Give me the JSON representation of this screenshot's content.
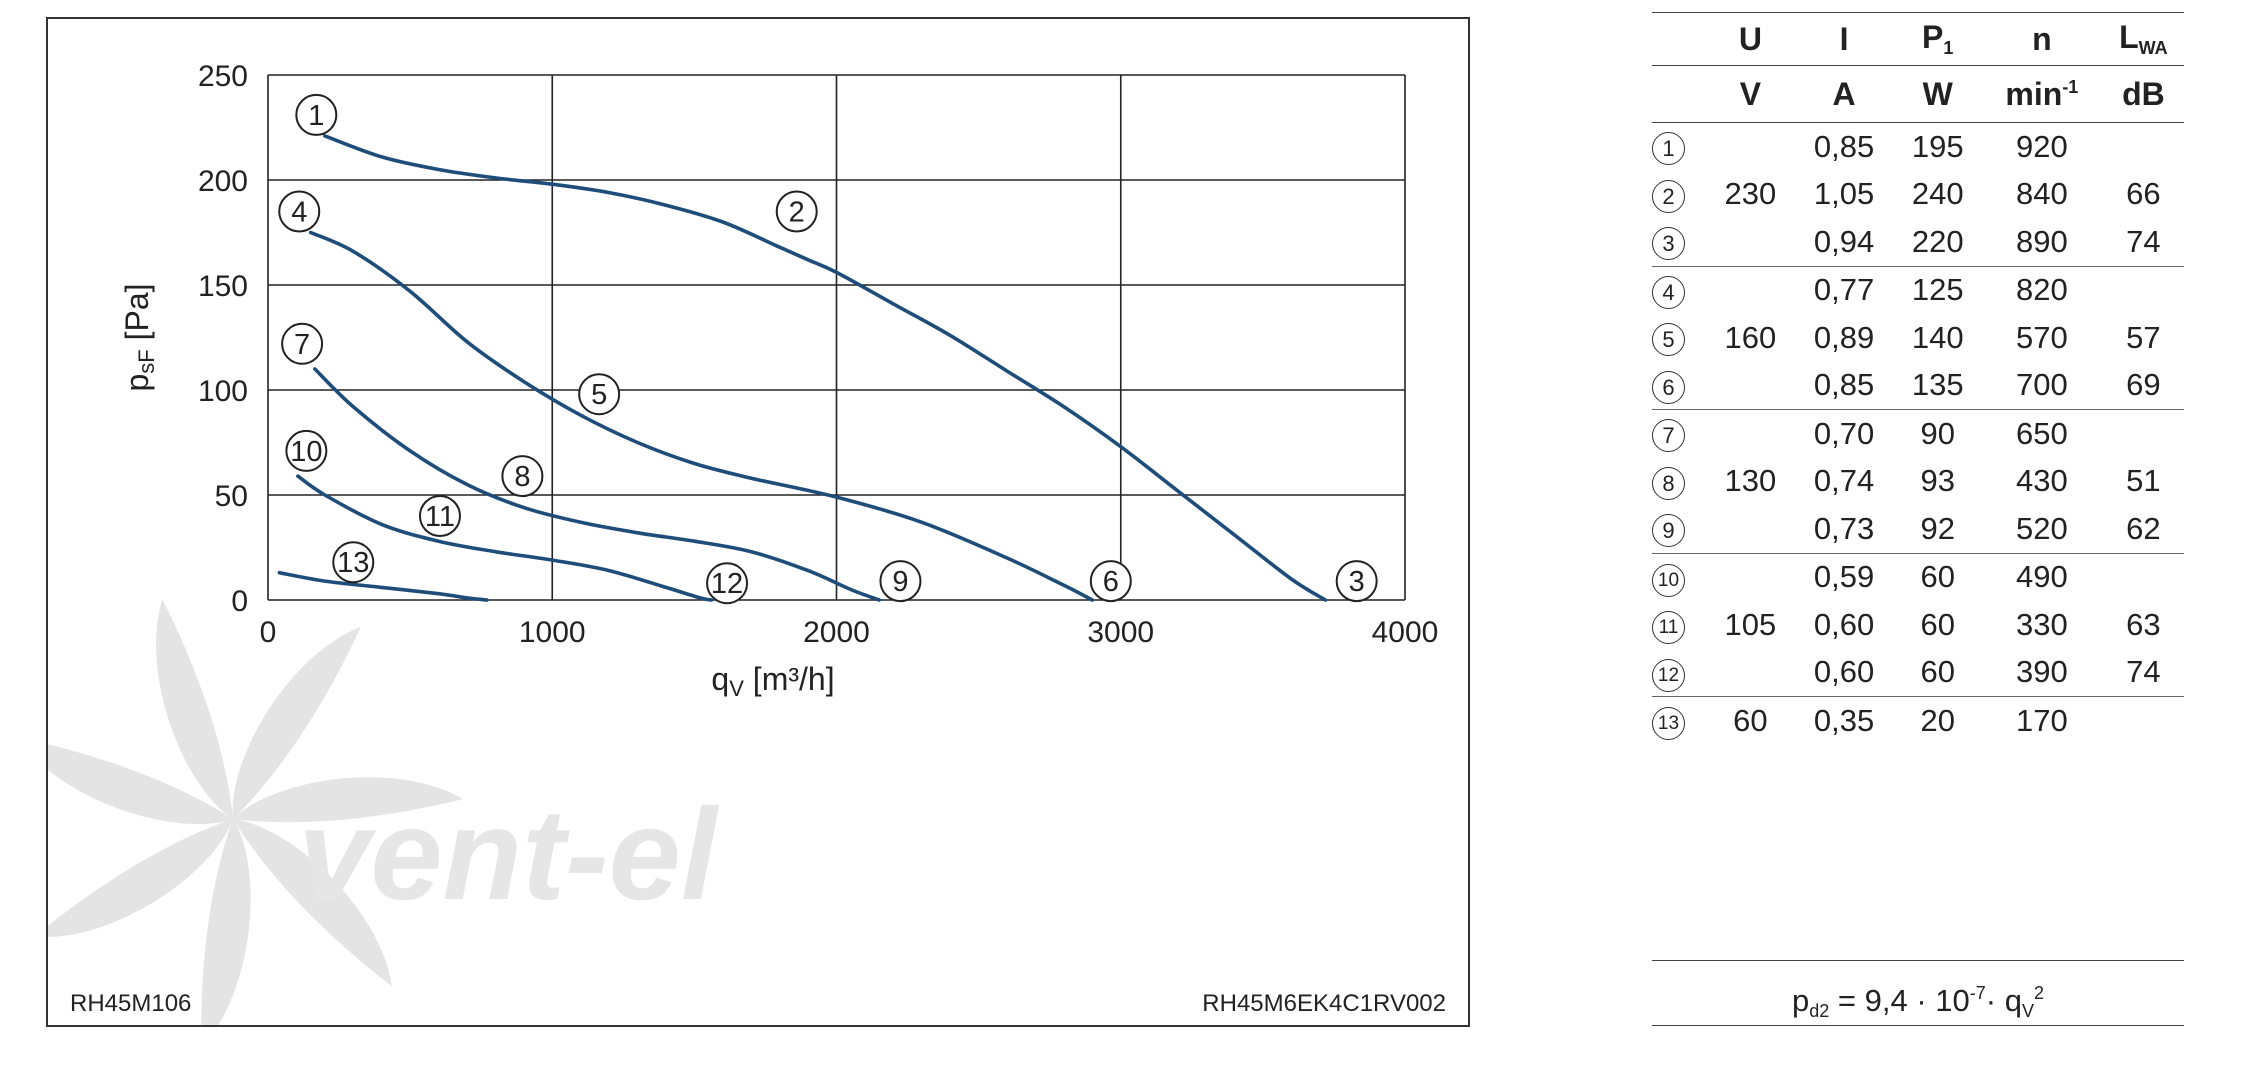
{
  "chart_data": {
    "type": "line",
    "xlabel": "q",
    "xlabel_sub": "V",
    "xlabel_unit": " [m³/h]",
    "ylabel": "p",
    "ylabel_sub": "sF",
    "ylabel_unit": " [Pa]",
    "xlim": [
      0,
      4000
    ],
    "ylim": [
      0,
      250
    ],
    "x_ticks": [
      0,
      1000,
      2000,
      3000,
      4000
    ],
    "y_ticks": [
      0,
      50,
      100,
      150,
      200,
      250
    ],
    "grid": true,
    "watermark": "vent-el",
    "code_left": "RH45M106",
    "code_right": "RH45M6EK4C1RV002",
    "series": [
      {
        "name": "1",
        "label_at": [
          170,
          231
        ],
        "x": [
          200,
          400,
          600,
          800,
          1000,
          1200,
          1400,
          1600,
          1800,
          1900,
          2000,
          2200,
          2400,
          2600,
          2800,
          3000,
          3200,
          3400,
          3600,
          3720
        ],
        "y": [
          221,
          211,
          205,
          201,
          198,
          194,
          188,
          180,
          168,
          162,
          156,
          141,
          126,
          109,
          92,
          73,
          52,
          31,
          10,
          0
        ]
      },
      {
        "name": "2",
        "label_at": [
          1860,
          185
        ],
        "x": [],
        "y": []
      },
      {
        "name": "3",
        "label_at": [
          3830,
          9
        ],
        "x": [],
        "y": []
      },
      {
        "name": "4",
        "label_at": [
          110,
          185
        ],
        "x": [
          150,
          300,
          500,
          700,
          900,
          1100,
          1300,
          1500,
          1700,
          2000,
          2300,
          2600,
          2800,
          2900
        ],
        "y": [
          175,
          166,
          147,
          123,
          104,
          88,
          75,
          65,
          58,
          49,
          37,
          20,
          7,
          0
        ]
      },
      {
        "name": "5",
        "label_at": [
          1165,
          98
        ],
        "x": [],
        "y": []
      },
      {
        "name": "6",
        "label_at": [
          2965,
          9
        ],
        "x": [],
        "y": []
      },
      {
        "name": "7",
        "label_at": [
          120,
          122
        ],
        "x": [
          165,
          300,
          500,
          700,
          900,
          1100,
          1300,
          1500,
          1700,
          1900,
          2050,
          2150
        ],
        "y": [
          110,
          92,
          71,
          55,
          44,
          37,
          32,
          28,
          23,
          14,
          5,
          0
        ]
      },
      {
        "name": "8",
        "label_at": [
          895,
          59
        ],
        "x": [],
        "y": []
      },
      {
        "name": "9",
        "label_at": [
          2225,
          9
        ],
        "x": [],
        "y": []
      },
      {
        "name": "10",
        "label_at": [
          135,
          71
        ],
        "x": [
          105,
          200,
          400,
          600,
          800,
          1000,
          1200,
          1400,
          1520,
          1560
        ],
        "y": [
          59,
          50,
          36,
          28,
          23,
          19,
          14,
          6,
          1,
          0
        ]
      },
      {
        "name": "11",
        "label_at": [
          605,
          40
        ],
        "x": [],
        "y": []
      },
      {
        "name": "12",
        "label_at": [
          1615,
          8
        ],
        "x": [],
        "y": []
      },
      {
        "name": "13",
        "label_at": [
          300,
          18
        ],
        "x": [
          40,
          200,
          400,
          600,
          700,
          770
        ],
        "y": [
          13,
          9,
          6,
          3,
          1,
          0
        ]
      }
    ]
  },
  "table": {
    "headers": [
      {
        "main": "",
        "sub": ""
      },
      {
        "main": "U",
        "sub": ""
      },
      {
        "main": "I",
        "sub": ""
      },
      {
        "main": "P",
        "sub": "1"
      },
      {
        "main": "n",
        "sub": ""
      },
      {
        "main": "L",
        "sub": "WA"
      }
    ],
    "units": [
      {
        "main": "",
        "sup": ""
      },
      {
        "main": "V",
        "sup": ""
      },
      {
        "main": "A",
        "sup": ""
      },
      {
        "main": "W",
        "sup": ""
      },
      {
        "main": "min",
        "sup": "-1"
      },
      {
        "main": "dB",
        "sup": ""
      }
    ],
    "rows": [
      {
        "mark": "1",
        "U": "",
        "I": "0,85",
        "P1": "195",
        "n": "920",
        "LWA": "",
        "group_end": false
      },
      {
        "mark": "2",
        "U": "230",
        "I": "1,05",
        "P1": "240",
        "n": "840",
        "LWA": "66",
        "group_end": false
      },
      {
        "mark": "3",
        "U": "",
        "I": "0,94",
        "P1": "220",
        "n": "890",
        "LWA": "74",
        "group_end": true
      },
      {
        "mark": "4",
        "U": "",
        "I": "0,77",
        "P1": "125",
        "n": "820",
        "LWA": "",
        "group_end": false
      },
      {
        "mark": "5",
        "U": "160",
        "I": "0,89",
        "P1": "140",
        "n": "570",
        "LWA": "57",
        "group_end": false
      },
      {
        "mark": "6",
        "U": "",
        "I": "0,85",
        "P1": "135",
        "n": "700",
        "LWA": "69",
        "group_end": true
      },
      {
        "mark": "7",
        "U": "",
        "I": "0,70",
        "P1": "90",
        "n": "650",
        "LWA": "",
        "group_end": false
      },
      {
        "mark": "8",
        "U": "130",
        "I": "0,74",
        "P1": "93",
        "n": "430",
        "LWA": "51",
        "group_end": false
      },
      {
        "mark": "9",
        "U": "",
        "I": "0,73",
        "P1": "92",
        "n": "520",
        "LWA": "62",
        "group_end": true
      },
      {
        "mark": "10",
        "U": "",
        "I": "0,59",
        "P1": "60",
        "n": "490",
        "LWA": "",
        "group_end": false
      },
      {
        "mark": "11",
        "U": "105",
        "I": "0,60",
        "P1": "60",
        "n": "330",
        "LWA": "63",
        "group_end": false
      },
      {
        "mark": "12",
        "U": "",
        "I": "0,60",
        "P1": "60",
        "n": "390",
        "LWA": "74",
        "group_end": true
      },
      {
        "mark": "13",
        "U": "60",
        "I": "0,35",
        "P1": "20",
        "n": "170",
        "LWA": "",
        "group_end": false
      }
    ]
  },
  "formula": {
    "lhs": "p",
    "lhs_sub": "d2",
    "mid": " = 9,4 · 10",
    "exp": "-7",
    "rhs": "· q",
    "rhs_sub": "V",
    "rhs_sup": "2"
  },
  "colors": {
    "curve": "#1e4d7a",
    "grid": "#222222",
    "watermark": "#e4e4e4"
  }
}
